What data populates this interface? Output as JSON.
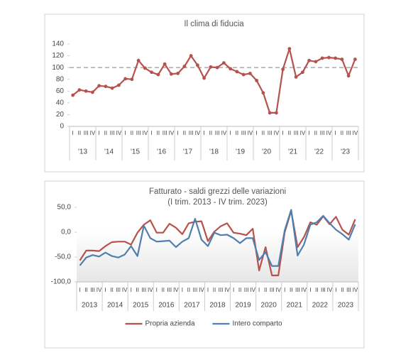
{
  "chart_data": [
    {
      "type": "line",
      "title": "Il clima di fiducia",
      "categories": [
        "I",
        "II",
        "III",
        "IV",
        "I",
        "II",
        "III",
        "IV",
        "I",
        "II",
        "III",
        "IV",
        "I",
        "II",
        "III",
        "IV",
        "I",
        "II",
        "III",
        "IV",
        "I",
        "II",
        "III",
        "IV",
        "I",
        "II",
        "III",
        "IV",
        "I",
        "II",
        "III",
        "IV",
        "I",
        "II",
        "III",
        "IV",
        "I",
        "II",
        "III",
        "IV",
        "I",
        "II",
        "III",
        "IV"
      ],
      "year_groups": [
        "'13",
        "'14",
        "'15",
        "'16",
        "'17",
        "'18",
        "'19",
        "'20",
        "'21",
        "'22",
        "'23"
      ],
      "values": [
        53,
        62,
        60,
        58,
        69,
        68,
        65,
        70,
        81,
        80,
        112,
        99,
        92,
        88,
        106,
        89,
        90,
        102,
        120,
        104,
        82,
        101,
        100,
        108,
        98,
        93,
        88,
        90,
        78,
        57,
        23,
        23,
        97,
        132,
        84,
        92,
        112,
        110,
        116,
        117,
        116,
        114,
        86,
        114
      ],
      "color": "#b5524d",
      "markers": true,
      "reference_line": 100,
      "ylim": [
        0,
        140
      ],
      "yticks": [
        0,
        20,
        40,
        60,
        80,
        100,
        120,
        140
      ]
    },
    {
      "type": "line",
      "title": "Fatturato - saldi grezzi delle variazioni",
      "subtitle": "(I trim. 2013 - IV trim. 2023)",
      "categories": [
        "I",
        "II",
        "III",
        "IV",
        "I",
        "II",
        "III",
        "IV",
        "I",
        "II",
        "III",
        "IV",
        "I",
        "II",
        "III",
        "IV",
        "I",
        "II",
        "III",
        "IV",
        "I",
        "II",
        "III",
        "IV",
        "I",
        "II",
        "III",
        "IV",
        "I",
        "II",
        "III",
        "IV",
        "I",
        "II",
        "III",
        "IV",
        "I",
        "II",
        "III",
        "IV",
        "I",
        "II",
        "III",
        "IV"
      ],
      "year_groups": [
        "2013",
        "2014",
        "2015",
        "2016",
        "2017",
        "2018",
        "2019",
        "2020",
        "2021",
        "2022",
        "2023"
      ],
      "series": [
        {
          "name": "Propria azienda",
          "color": "#b5524d",
          "values": [
            -57,
            -37,
            -37,
            -38,
            -28,
            -20,
            -19,
            -19,
            -25,
            -1,
            15,
            24,
            -1,
            -1,
            17,
            9,
            -4,
            18,
            21,
            22,
            -18,
            1,
            12,
            18,
            -1,
            -3,
            -6,
            7,
            -77,
            -30,
            -87,
            -87,
            0,
            43,
            -30,
            -10,
            20,
            15,
            32,
            16,
            31,
            5,
            -5,
            26
          ]
        },
        {
          "name": "Intero comparto",
          "color": "#4f7fb0",
          "values": [
            -67,
            -51,
            -46,
            -49,
            -41,
            -48,
            -51,
            -45,
            -28,
            -48,
            13,
            -12,
            -19,
            -18,
            -17,
            -30,
            -19,
            -12,
            27,
            -15,
            -28,
            -1,
            -6,
            -5,
            -12,
            -22,
            -12,
            -12,
            -56,
            -40,
            -68,
            -68,
            4,
            45,
            -47,
            -25,
            15,
            20,
            33,
            18,
            5,
            -4,
            -15,
            16
          ]
        }
      ],
      "legend": "bottom",
      "ylim": [
        -100,
        50
      ],
      "yticks": [
        {
          "value": -100,
          "label": "-100,0"
        },
        {
          "value": -50,
          "label": "-50,0"
        },
        {
          "value": 0,
          "label": "0,0"
        },
        {
          "value": 50,
          "label": "50,0"
        }
      ]
    }
  ]
}
